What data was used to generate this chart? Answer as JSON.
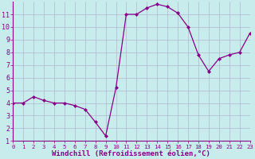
{
  "x": [
    0,
    1,
    2,
    3,
    4,
    5,
    6,
    7,
    8,
    9,
    10,
    11,
    12,
    13,
    14,
    15,
    16,
    17,
    18,
    19,
    20,
    21,
    22,
    23
  ],
  "y": [
    4.0,
    4.0,
    4.5,
    4.2,
    4.0,
    4.0,
    3.8,
    3.5,
    2.5,
    1.4,
    5.2,
    11.0,
    11.0,
    11.5,
    11.8,
    11.6,
    11.1,
    10.0,
    7.8,
    6.5,
    7.5,
    7.8,
    8.0,
    9.5
  ],
  "line_color": "#880088",
  "marker": "D",
  "marker_size": 2.0,
  "bg_color": "#c8ecec",
  "grid_color": "#b0b8d0",
  "xlabel": "Windchill (Refroidissement éolien,°C)",
  "xlim": [
    0,
    23
  ],
  "ylim": [
    1,
    12
  ],
  "xticks": [
    0,
    1,
    2,
    3,
    4,
    5,
    6,
    7,
    8,
    9,
    10,
    11,
    12,
    13,
    14,
    15,
    16,
    17,
    18,
    19,
    20,
    21,
    22,
    23
  ],
  "yticks": [
    1,
    2,
    3,
    4,
    5,
    6,
    7,
    8,
    9,
    10,
    11
  ],
  "axis_color": "#880088",
  "tick_color": "#880088",
  "xlabel_fontsize": 6.5,
  "tick_fontsize_x": 5.2,
  "tick_fontsize_y": 6.0
}
